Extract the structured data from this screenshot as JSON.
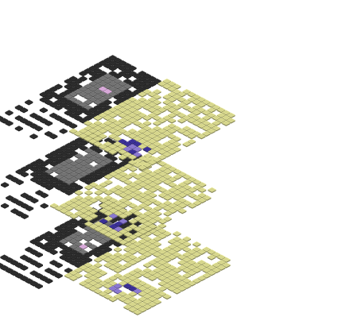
{
  "visualization": {
    "type": "isometric-tile-layers",
    "layer_count": 3,
    "tile_kinds": [
      "dark",
      "gray",
      "yellow",
      "blue",
      "lilac",
      "pink"
    ],
    "colors": {
      "background": "#ffffff",
      "dark": "#2b2b2b",
      "gray": "#737373",
      "yellow": "#d6d68c",
      "blue": "#3a2f96",
      "lilac": "#8a78d0",
      "pink": "#d7a8d8",
      "grout": "#eeeeee"
    }
  }
}
